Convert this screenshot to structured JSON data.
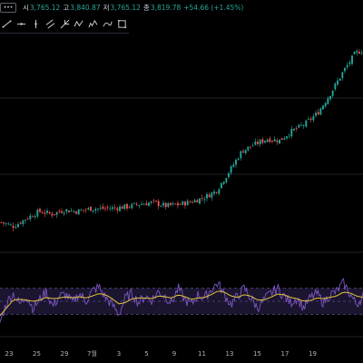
{
  "ohlc": {
    "menu_glyph": "•••",
    "open_label": "시",
    "open_value": "3,765.12",
    "high_label": "고",
    "high_value": "3,840.87",
    "low_label": "저",
    "low_value": "3,765.12",
    "close_label": "종",
    "close_value": "3,819.78",
    "change": "+54.66 (+1.45%)"
  },
  "toolbar": {
    "icons": [
      "trend-line-icon",
      "horizontal-line-icon",
      "vertical-line-icon",
      "parallel-channel-icon",
      "pitchfork-icon",
      "xabcd-pattern-icon",
      "elliott-wave-icon",
      "arrow-path-icon",
      "rectangle-icon"
    ]
  },
  "colors": {
    "up": "#26a69a",
    "down": "#ef5350",
    "rsi_line": "#7e57c2",
    "rsi_ma": "#e0c43a",
    "rsi_band": "#1b1530",
    "grid": "#1f222a"
  },
  "chart_data": [
    {
      "type": "candlestick",
      "title": "",
      "x_tick_labels": [
        "23",
        "25",
        "29",
        "7월",
        "3",
        "5",
        "9",
        "11",
        "13",
        "15",
        "17",
        "19"
      ],
      "y_range": [
        2340,
        3950
      ],
      "close_path": [
        {
          "x": 0,
          "close": 2560
        },
        {
          "x": 2,
          "close": 2530
        },
        {
          "x": 4,
          "close": 2590
        },
        {
          "x": 6,
          "close": 2640
        },
        {
          "x": 8,
          "close": 2620
        },
        {
          "x": 10,
          "close": 2650
        },
        {
          "x": 12,
          "close": 2640
        },
        {
          "x": 14,
          "close": 2660
        },
        {
          "x": 16,
          "close": 2660
        },
        {
          "x": 18,
          "close": 2665
        },
        {
          "x": 20,
          "close": 2675
        },
        {
          "x": 22,
          "close": 2695
        },
        {
          "x": 24,
          "close": 2705
        },
        {
          "x": 26,
          "close": 2680
        },
        {
          "x": 28,
          "close": 2690
        },
        {
          "x": 30,
          "close": 2710
        },
        {
          "x": 32,
          "close": 2740
        },
        {
          "x": 34,
          "close": 2790
        },
        {
          "x": 36,
          "close": 2930
        },
        {
          "x": 38,
          "close": 3080
        },
        {
          "x": 40,
          "close": 3130
        },
        {
          "x": 42,
          "close": 3170
        },
        {
          "x": 44,
          "close": 3160
        },
        {
          "x": 46,
          "close": 3230
        },
        {
          "x": 48,
          "close": 3280
        },
        {
          "x": 50,
          "close": 3360
        },
        {
          "x": 52,
          "close": 3500
        },
        {
          "x": 54,
          "close": 3660
        },
        {
          "x": 55,
          "close": 3730
        },
        {
          "x": 56,
          "close": 3800
        },
        {
          "x": 57,
          "close": 3820
        }
      ]
    },
    {
      "type": "line",
      "title": "",
      "y_range": [
        0,
        100
      ],
      "band": [
        30,
        70
      ],
      "series": [
        {
          "values": [
            18,
            48,
            62,
            45,
            58,
            40,
            52,
            65,
            42,
            58,
            60,
            48,
            62,
            50,
            66,
            72,
            55,
            45,
            30,
            55,
            62,
            48,
            58,
            52,
            65,
            58,
            48,
            70,
            52,
            45,
            60,
            55,
            68,
            78,
            60,
            45,
            58,
            70,
            55,
            40,
            52,
            62,
            70,
            58,
            48,
            55,
            40,
            55,
            62,
            48,
            60,
            65,
            78,
            62,
            45,
            58
          ]
        },
        {
          "values": [
            28,
            40,
            52,
            53,
            52,
            50,
            52,
            56,
            54,
            55,
            57,
            55,
            57,
            55,
            58,
            62,
            60,
            54,
            46,
            48,
            54,
            55,
            55,
            54,
            58,
            57,
            55,
            60,
            57,
            53,
            55,
            56,
            60,
            66,
            64,
            58,
            56,
            60,
            58,
            52,
            52,
            56,
            61,
            60,
            56,
            54,
            50,
            51,
            55,
            54,
            56,
            58,
            64,
            63,
            58,
            56
          ]
        }
      ]
    }
  ]
}
